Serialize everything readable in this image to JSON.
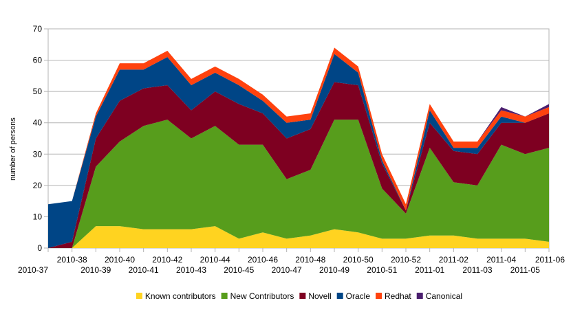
{
  "chart_data": {
    "type": "area",
    "stacked": true,
    "title": "",
    "xlabel": "",
    "ylabel": "number of persons",
    "ylim": [
      0,
      70
    ],
    "yticks": [
      0,
      10,
      20,
      30,
      40,
      50,
      60,
      70
    ],
    "grid": true,
    "legend_position": "bottom",
    "categories": [
      "2010-37",
      "2010-38",
      "2010-39",
      "2010-40",
      "2010-41",
      "2010-42",
      "2010-43",
      "2010-44",
      "2010-45",
      "2010-46",
      "2010-47",
      "2010-48",
      "2010-49",
      "2010-50",
      "2010-51",
      "2010-52",
      "2011-01",
      "2011-02",
      "2011-03",
      "2011-04",
      "2011-05",
      "2011-06"
    ],
    "series": [
      {
        "name": "Known contributors",
        "color": "#FFD320",
        "values": [
          0,
          0,
          7,
          7,
          6,
          6,
          6,
          7,
          3,
          5,
          3,
          4,
          6,
          5,
          3,
          3,
          4,
          4,
          3,
          3,
          3,
          2
        ]
      },
      {
        "name": "New Contributors",
        "color": "#579D1C",
        "values": [
          0,
          0,
          19,
          27,
          33,
          35,
          29,
          32,
          30,
          28,
          19,
          21,
          35,
          36,
          16,
          8,
          28,
          17,
          17,
          30,
          27,
          30
        ]
      },
      {
        "name": "Novell",
        "color": "#7E0021",
        "values": [
          0,
          2,
          9,
          13,
          12,
          11,
          9,
          11,
          13,
          10,
          13,
          13,
          12,
          11,
          8,
          1,
          8,
          10,
          10,
          7,
          10,
          11
        ]
      },
      {
        "name": "Oracle",
        "color": "#004586",
        "values": [
          14,
          13,
          7,
          10,
          6,
          9,
          8,
          6,
          6,
          4,
          5,
          3,
          9,
          4,
          1,
          0,
          4,
          1,
          2,
          2,
          0,
          0
        ]
      },
      {
        "name": "Redhat",
        "color": "#FF420E",
        "values": [
          0,
          0,
          1,
          2,
          2,
          2,
          2,
          2,
          2,
          2,
          2,
          2,
          2,
          2,
          2,
          2,
          2,
          2,
          2,
          2,
          2,
          2
        ]
      },
      {
        "name": "Canonical",
        "color": "#4B1F6F",
        "values": [
          0,
          0,
          0,
          0,
          0,
          0,
          0,
          0,
          0,
          0,
          0,
          0,
          0,
          0,
          0,
          0,
          0,
          0,
          0,
          1,
          0,
          1
        ]
      }
    ]
  }
}
